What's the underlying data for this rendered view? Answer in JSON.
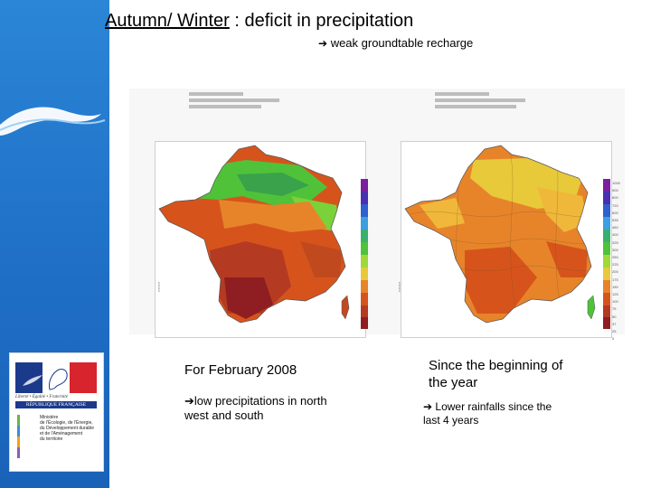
{
  "title": {
    "underlined": "Autumn/ Winter",
    "rest": " : deficit in precipitation"
  },
  "subtitle": "weak groundtable recharge",
  "arrow_icon": "➔",
  "maps": {
    "left": {
      "caption_main": "For February 2008",
      "caption_detail_line1": "low precipitations in north",
      "caption_detail_line2": "west and south"
    },
    "right": {
      "caption_main_line1": "Since the beginning of",
      "caption_main_line2": "the year",
      "caption_detail_line1": "Lower rainfalls since the",
      "caption_detail_line2": "last 4 years",
      "scale_labels": [
        "1000",
        "900",
        "800",
        "720",
        "600",
        "535",
        "460",
        "400",
        "325",
        "300",
        "250",
        "225",
        "200",
        "175",
        "150",
        "125",
        "100",
        "75",
        "50",
        "37",
        "25",
        "0"
      ]
    }
  },
  "colors": {
    "sidebar": "#1f6fc7",
    "deficit_dark": "#a0282a",
    "deficit_mid": "#d0561c",
    "deficit_light": "#e7842a",
    "normal_yellow": "#e8c93a",
    "surplus_green": "#4fc23a"
  },
  "logo": {
    "motto": "Liberté • Égalité • Fraternité",
    "republic": "RÉPUBLIQUE FRANÇAISE",
    "ministry": [
      "Ministère",
      "de l'Écologie, de l'Énergie,",
      "du Développement durable",
      "et de l'Aménagement",
      "du territoire"
    ]
  }
}
